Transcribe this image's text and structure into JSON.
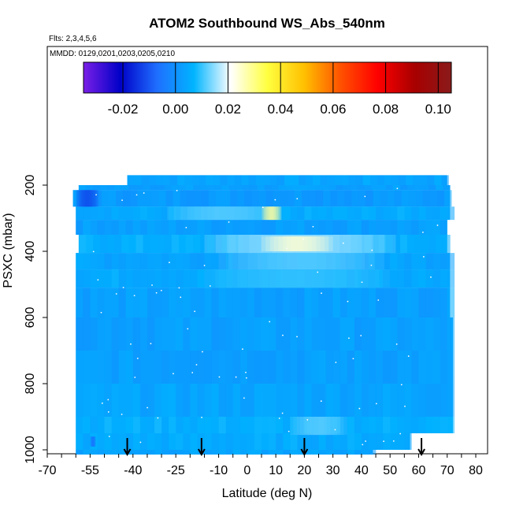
{
  "chart_data": {
    "type": "heatmap",
    "title": "ATOM2 Southbound WS_Abs_540nm",
    "subtitle_flights": "Flts: 2,3,4,5,6",
    "subtitle_dates": "MMDD: 0129,0201,0203,0205,0210",
    "xlabel": "Latitude (deg N)",
    "ylabel": "PSXC (mbar)",
    "xlim": [
      -70,
      80
    ],
    "ylim": [
      1000,
      100
    ],
    "x_ticks": [
      -70,
      -55,
      -40,
      -25,
      -10,
      0,
      10,
      20,
      30,
      40,
      50,
      60,
      70,
      80
    ],
    "x_tick_labels": [
      "-70",
      "-55",
      "-40",
      "-25",
      "-10",
      "0",
      "10",
      "20",
      "30",
      "40",
      "50",
      "60",
      "70",
      "80"
    ],
    "y_ticks": [
      200,
      400,
      600,
      800,
      1000
    ],
    "y_tick_labels": [
      "200",
      "400",
      "600",
      "800",
      "1000"
    ],
    "colorbar": {
      "range": [
        -0.035,
        0.105
      ],
      "ticks": [
        -0.02,
        0.0,
        0.02,
        0.04,
        0.06,
        0.08,
        0.1
      ],
      "tick_labels": [
        "-0.02",
        "0.00",
        "0.02",
        "0.04",
        "0.06",
        "0.08",
        "0.10"
      ],
      "colors": [
        "#7a1fe6",
        "#0000c8",
        "#1f6fff",
        "#00b4ff",
        "#ffffff",
        "#ffff40",
        "#ffc000",
        "#ff5000",
        "#ff0000",
        "#a80000",
        "#8a1a1a"
      ]
    },
    "background_value": 0.0,
    "layers": [
      {
        "p_top": 170,
        "p_bot": 200,
        "lat_min": -42,
        "lat_max": 70,
        "value": 0.004
      },
      {
        "p_top": 200,
        "p_bot": 215,
        "lat_min": -59,
        "lat_max": 71,
        "value": 0.003
      },
      {
        "p_top": 215,
        "p_bot": 265,
        "lat_min": -61,
        "lat_max": 71,
        "value": 0.002
      },
      {
        "p_top": 265,
        "p_bot": 305,
        "lat_min": -60,
        "lat_max": 71,
        "value": 0.005
      },
      {
        "p_top": 305,
        "p_bot": 350,
        "lat_min": -60,
        "lat_max": 70,
        "value": 0.003
      },
      {
        "p_top": 350,
        "p_bot": 405,
        "lat_min": -59,
        "lat_max": 70,
        "value": 0.006
      },
      {
        "p_top": 405,
        "p_bot": 455,
        "lat_min": -60,
        "lat_max": 71,
        "value": 0.004
      },
      {
        "p_top": 455,
        "p_bot": 510,
        "lat_min": -60,
        "lat_max": 71,
        "value": 0.005
      },
      {
        "p_top": 510,
        "p_bot": 600,
        "lat_min": -60,
        "lat_max": 71,
        "value": 0.003
      },
      {
        "p_top": 600,
        "p_bot": 700,
        "lat_min": -60,
        "lat_max": 72,
        "value": 0.003
      },
      {
        "p_top": 700,
        "p_bot": 800,
        "lat_min": -60,
        "lat_max": 72,
        "value": 0.003
      },
      {
        "p_top": 800,
        "p_bot": 900,
        "lat_min": -60,
        "lat_max": 72,
        "value": 0.004
      },
      {
        "p_top": 900,
        "p_bot": 950,
        "lat_min": -60,
        "lat_max": 72,
        "value": 0.006
      },
      {
        "p_top": 950,
        "p_bot": 1000,
        "lat_min": -60,
        "lat_max": 57,
        "value": 0.005
      },
      {
        "p_top": 1000,
        "p_bot": 1000,
        "lat_min": -60,
        "lat_max": 44,
        "value": 0.004
      }
    ],
    "features": [
      {
        "lat_min": -60,
        "lat_max": -52,
        "p_top": 215,
        "p_bot": 265,
        "value": -0.012
      },
      {
        "lat_min": -55,
        "lat_max": -53,
        "p_top": 960,
        "p_bot": 990,
        "value": -0.006
      },
      {
        "lat_min": -28,
        "lat_max": 12,
        "p_top": 265,
        "p_bot": 305,
        "value": 0.012
      },
      {
        "lat_min": 5,
        "lat_max": 12,
        "p_top": 265,
        "p_bot": 305,
        "value": 0.028
      },
      {
        "lat_min": -15,
        "lat_max": 52,
        "p_top": 350,
        "p_bot": 405,
        "value": 0.016
      },
      {
        "lat_min": 5,
        "lat_max": 30,
        "p_top": 355,
        "p_bot": 400,
        "value": 0.024
      },
      {
        "lat_min": -10,
        "lat_max": 48,
        "p_top": 405,
        "p_bot": 455,
        "value": 0.012
      },
      {
        "lat_min": -15,
        "lat_max": 50,
        "p_top": 455,
        "p_bot": 510,
        "value": 0.01
      },
      {
        "lat_min": 15,
        "lat_max": 35,
        "p_top": 900,
        "p_bot": 955,
        "value": 0.012
      }
    ],
    "flight_markers_lat": [
      -42,
      -16,
      20,
      61
    ],
    "white_dots_count": 90
  }
}
